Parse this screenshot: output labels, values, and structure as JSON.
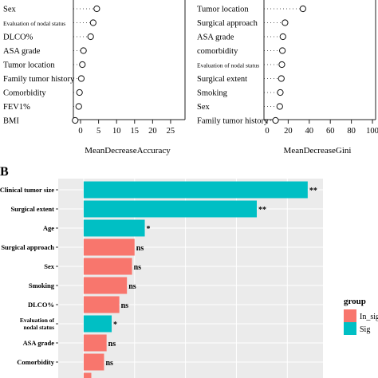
{
  "chart_data": [
    {
      "type": "scatter",
      "xlabel": "MeanDecreaseAccuracy",
      "xticks": [
        "0",
        "5",
        "10",
        "15",
        "20",
        "25"
      ],
      "xlim": [
        -2,
        29
      ],
      "grid": false,
      "categories": [
        "Sex",
        "Evaluation of nodal status",
        "DLCO%",
        "ASA grade",
        "Tumor location",
        "Family tumor history",
        "Comorbidity",
        "FEV1%",
        "BMI"
      ],
      "values": [
        4.5,
        3.5,
        2.8,
        0.8,
        0.5,
        0.2,
        -0.3,
        -0.5,
        -1.5
      ]
    },
    {
      "type": "scatter",
      "xlabel": "MeanDecreaseGini",
      "xticks": [
        "0",
        "20",
        "40",
        "60",
        "80",
        "100"
      ],
      "xlim": [
        -3,
        103
      ],
      "grid": false,
      "categories": [
        "Tumor location",
        "Surgical approach",
        "ASA grade",
        "comorbidity",
        "Evaluation of nodal status",
        "Surgical extent",
        "Smoking",
        "Sex",
        "Family tumor history"
      ],
      "values": [
        34,
        17,
        15,
        14.5,
        14,
        13.5,
        12.5,
        12,
        8
      ]
    },
    {
      "type": "bar",
      "panel_label": "B",
      "orientation": "horizontal",
      "categories": [
        "Clinical tumor size",
        "Surgical extent",
        "Age",
        "Surgical approach",
        "Sex",
        "Smoking",
        "DLCO%",
        "Evaluation of nodal status",
        "ASA grade",
        "Comorbidity",
        ""
      ],
      "values": [
        44,
        34,
        12,
        10,
        9.5,
        8.5,
        7,
        5.5,
        4.5,
        4,
        1.5
      ],
      "groups": [
        "Sig",
        "Sig",
        "Sig",
        "In_sig",
        "In_sig",
        "In_sig",
        "In_sig",
        "Sig",
        "In_sig",
        "In_sig",
        "In_sig"
      ],
      "annotations": [
        "**",
        "**",
        "*",
        "ns",
        "ns",
        "ns",
        "ns",
        "*",
        "ns",
        "ns",
        ""
      ],
      "xlim": [
        -5,
        47
      ],
      "legend": {
        "title": "group",
        "entries": [
          "In_sig",
          "Sig"
        ],
        "placement": "right"
      },
      "colors": {
        "In_sig": "#F8766D",
        "Sig": "#00BFC4",
        "panel": "#EBEBEB",
        "grid": "#FFFFFF"
      }
    }
  ]
}
